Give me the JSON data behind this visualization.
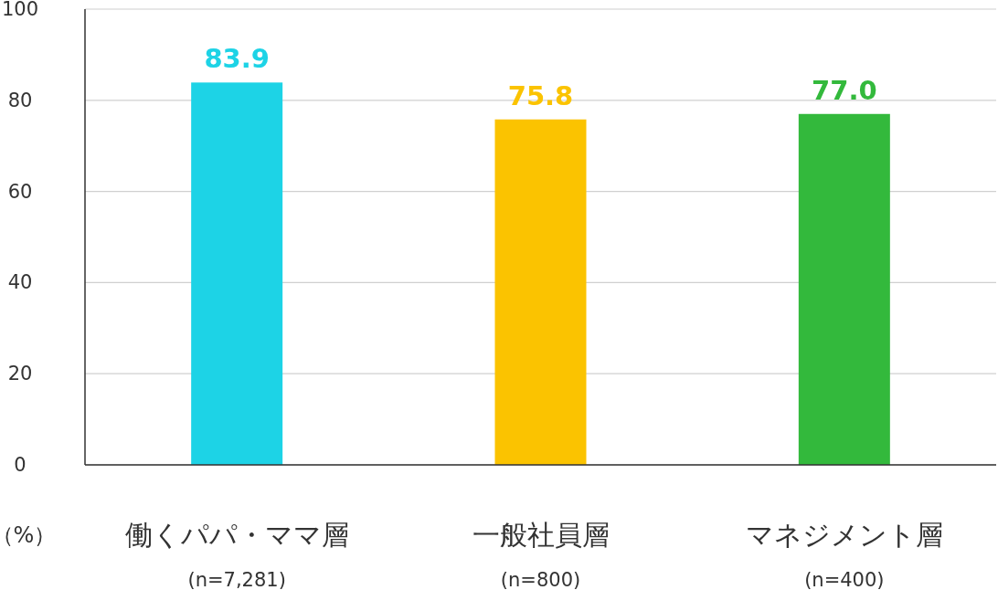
{
  "chart_data": {
    "type": "bar",
    "ylabel": "（%）",
    "categories": [
      "働くパパ・ママ層\n(n=7,281)",
      "一般社員層\n(n=800)",
      "マネジメント層\n(n=400)"
    ],
    "values": [
      83.9,
      75.8,
      77.0
    ],
    "colors": [
      "#1dd3e6",
      "#fbc300",
      "#33b93c"
    ],
    "ylim": [
      0,
      100
    ],
    "yticks": [
      0,
      20,
      40,
      60,
      80,
      100
    ],
    "value_labels": [
      "83.9",
      "75.8",
      "77.0"
    ],
    "grid": "y"
  }
}
